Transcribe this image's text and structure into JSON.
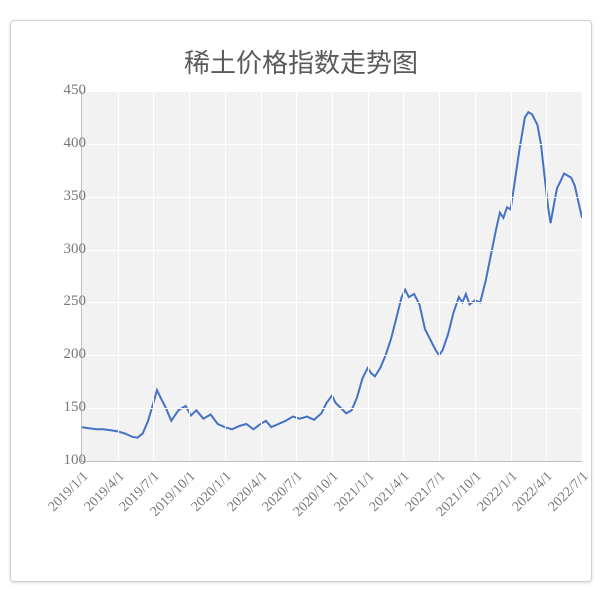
{
  "chart": {
    "type": "line",
    "title": "稀土价格指数走势图",
    "title_fontsize": 26,
    "title_color": "#5a5a5a",
    "font_family": "SimSun, serif",
    "background_color": "#ffffff",
    "plot_background": "#f2f2f2",
    "grid_color": "#ffffff",
    "axis_color": "#bfbfbf",
    "tick_label_color": "#777777",
    "tick_label_fontsize": 15,
    "line_color": "#4472c4",
    "line_width": 2,
    "ylim": [
      100,
      450
    ],
    "yticks": [
      100,
      150,
      200,
      250,
      300,
      350,
      400,
      450
    ],
    "xticks": [
      "2019/1/1",
      "2019/4/1",
      "2019/7/1",
      "2019/10/1",
      "2020/1/1",
      "2020/4/1",
      "2020/7/1",
      "2020/10/1",
      "2021/1/1",
      "2021/4/1",
      "2021/7/1",
      "2021/10/1",
      "2022/1/1",
      "2022/4/1",
      "2022/7/1"
    ],
    "x_range": 14,
    "series": [
      {
        "x": 0.0,
        "y": 132
      },
      {
        "x": 0.2,
        "y": 131
      },
      {
        "x": 0.4,
        "y": 130
      },
      {
        "x": 0.6,
        "y": 130
      },
      {
        "x": 0.8,
        "y": 129
      },
      {
        "x": 1.0,
        "y": 128
      },
      {
        "x": 1.2,
        "y": 126
      },
      {
        "x": 1.4,
        "y": 123
      },
      {
        "x": 1.55,
        "y": 122
      },
      {
        "x": 1.7,
        "y": 126
      },
      {
        "x": 1.85,
        "y": 138
      },
      {
        "x": 2.0,
        "y": 155
      },
      {
        "x": 2.1,
        "y": 167
      },
      {
        "x": 2.2,
        "y": 160
      },
      {
        "x": 2.35,
        "y": 150
      },
      {
        "x": 2.5,
        "y": 138
      },
      {
        "x": 2.7,
        "y": 148
      },
      {
        "x": 2.9,
        "y": 152
      },
      {
        "x": 3.05,
        "y": 143
      },
      {
        "x": 3.2,
        "y": 148
      },
      {
        "x": 3.4,
        "y": 140
      },
      {
        "x": 3.6,
        "y": 144
      },
      {
        "x": 3.8,
        "y": 135
      },
      {
        "x": 4.0,
        "y": 132
      },
      {
        "x": 4.2,
        "y": 130
      },
      {
        "x": 4.4,
        "y": 133
      },
      {
        "x": 4.6,
        "y": 135
      },
      {
        "x": 4.8,
        "y": 130
      },
      {
        "x": 5.0,
        "y": 135
      },
      {
        "x": 5.15,
        "y": 138
      },
      {
        "x": 5.3,
        "y": 132
      },
      {
        "x": 5.5,
        "y": 135
      },
      {
        "x": 5.7,
        "y": 138
      },
      {
        "x": 5.9,
        "y": 142
      },
      {
        "x": 6.1,
        "y": 140
      },
      {
        "x": 6.3,
        "y": 142
      },
      {
        "x": 6.5,
        "y": 139
      },
      {
        "x": 6.7,
        "y": 145
      },
      {
        "x": 6.85,
        "y": 155
      },
      {
        "x": 7.0,
        "y": 162
      },
      {
        "x": 7.1,
        "y": 155
      },
      {
        "x": 7.25,
        "y": 150
      },
      {
        "x": 7.4,
        "y": 145
      },
      {
        "x": 7.55,
        "y": 148
      },
      {
        "x": 7.7,
        "y": 160
      },
      {
        "x": 7.85,
        "y": 178
      },
      {
        "x": 8.0,
        "y": 188
      },
      {
        "x": 8.1,
        "y": 183
      },
      {
        "x": 8.2,
        "y": 180
      },
      {
        "x": 8.35,
        "y": 188
      },
      {
        "x": 8.5,
        "y": 200
      },
      {
        "x": 8.65,
        "y": 215
      },
      {
        "x": 8.8,
        "y": 235
      },
      {
        "x": 8.95,
        "y": 255
      },
      {
        "x": 9.05,
        "y": 262
      },
      {
        "x": 9.15,
        "y": 255
      },
      {
        "x": 9.3,
        "y": 258
      },
      {
        "x": 9.45,
        "y": 248
      },
      {
        "x": 9.6,
        "y": 225
      },
      {
        "x": 9.75,
        "y": 215
      },
      {
        "x": 9.9,
        "y": 205
      },
      {
        "x": 10.0,
        "y": 200
      },
      {
        "x": 10.1,
        "y": 205
      },
      {
        "x": 10.25,
        "y": 220
      },
      {
        "x": 10.4,
        "y": 240
      },
      {
        "x": 10.55,
        "y": 255
      },
      {
        "x": 10.65,
        "y": 250
      },
      {
        "x": 10.75,
        "y": 258
      },
      {
        "x": 10.85,
        "y": 248
      },
      {
        "x": 11.0,
        "y": 252
      },
      {
        "x": 11.15,
        "y": 250
      },
      {
        "x": 11.3,
        "y": 270
      },
      {
        "x": 11.45,
        "y": 295
      },
      {
        "x": 11.6,
        "y": 320
      },
      {
        "x": 11.7,
        "y": 335
      },
      {
        "x": 11.8,
        "y": 330
      },
      {
        "x": 11.9,
        "y": 340
      },
      {
        "x": 12.0,
        "y": 338
      },
      {
        "x": 12.1,
        "y": 360
      },
      {
        "x": 12.25,
        "y": 395
      },
      {
        "x": 12.4,
        "y": 425
      },
      {
        "x": 12.5,
        "y": 430
      },
      {
        "x": 12.6,
        "y": 428
      },
      {
        "x": 12.75,
        "y": 418
      },
      {
        "x": 12.85,
        "y": 400
      },
      {
        "x": 12.95,
        "y": 370
      },
      {
        "x": 13.05,
        "y": 340
      },
      {
        "x": 13.12,
        "y": 325
      },
      {
        "x": 13.2,
        "y": 340
      },
      {
        "x": 13.3,
        "y": 358
      },
      {
        "x": 13.4,
        "y": 365
      },
      {
        "x": 13.5,
        "y": 372
      },
      {
        "x": 13.6,
        "y": 370
      },
      {
        "x": 13.7,
        "y": 368
      },
      {
        "x": 13.8,
        "y": 360
      },
      {
        "x": 13.9,
        "y": 345
      },
      {
        "x": 14.0,
        "y": 330
      }
    ]
  }
}
